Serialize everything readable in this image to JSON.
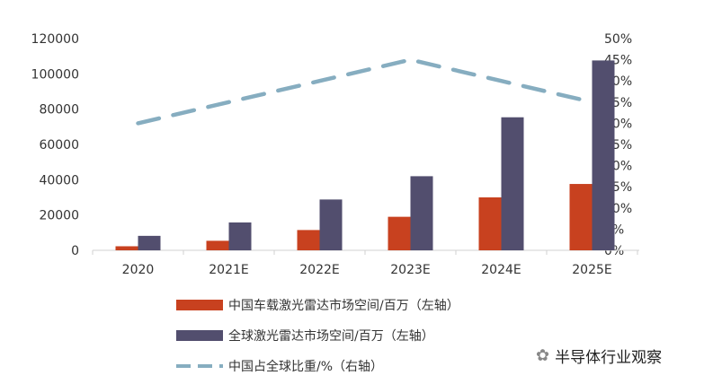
{
  "chart_data": {
    "type": "bar",
    "categories": [
      "2020",
      "2021E",
      "2022E",
      "2023E",
      "2024E",
      "2025E"
    ],
    "series": [
      {
        "name": "中国车载激光雷达市场空间/百万（左轴）",
        "type": "bar",
        "axis": "left",
        "color": "#c8411f",
        "values": [
          2300,
          5400,
          11500,
          19000,
          30000,
          37600
        ]
      },
      {
        "name": "全球激光雷达市场空间/百万（左轴）",
        "type": "bar",
        "axis": "left",
        "color": "#524e6e",
        "values": [
          8200,
          15800,
          28800,
          42000,
          75400,
          107600
        ]
      },
      {
        "name": "中国占全球比重/%（右轴）",
        "type": "line",
        "axis": "right",
        "color": "#86adc0",
        "values": [
          30,
          35,
          40,
          45,
          40,
          35
        ]
      }
    ],
    "left_axis": {
      "ylim": [
        0,
        120000
      ],
      "ticks": [
        "0",
        "20000",
        "40000",
        "60000",
        "80000",
        "100000",
        "120000"
      ]
    },
    "right_axis": {
      "ylim": [
        0,
        50
      ],
      "ticks": [
        "0%",
        "5%",
        "10%",
        "15%",
        "20%",
        "25%",
        "30%",
        "35%",
        "40%",
        "45%",
        "50%"
      ]
    },
    "legend_placement": "bottom"
  },
  "watermark": "半导体行业观察"
}
